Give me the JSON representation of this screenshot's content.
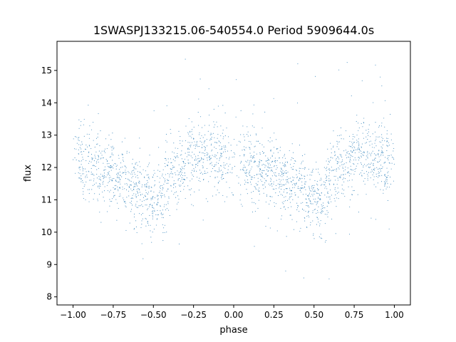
{
  "chart_data": {
    "type": "scatter",
    "title": "1SWASPJ133215.06-540554.0 Period 5909644.0s",
    "xlabel": "phase",
    "ylabel": "flux",
    "xlim": [
      -1.1,
      1.1
    ],
    "ylim": [
      7.75,
      15.9
    ],
    "xticks": [
      -1.0,
      -0.75,
      -0.5,
      -0.25,
      0.0,
      0.25,
      0.5,
      0.75,
      1.0
    ],
    "xtick_labels": [
      "−1.00",
      "−0.75",
      "−0.50",
      "−0.25",
      "0.00",
      "0.25",
      "0.50",
      "0.75",
      "1.00"
    ],
    "yticks": [
      8,
      9,
      10,
      11,
      12,
      13,
      14,
      15
    ],
    "ytick_labels": [
      "8",
      "9",
      "10",
      "11",
      "12",
      "13",
      "14",
      "15"
    ],
    "grid": false,
    "legend": "none",
    "marker_color": "#1f77b4",
    "x_range": [
      -1.0,
      1.0
    ],
    "y_range": [
      8.0,
      15.6
    ],
    "series": [
      {
        "x": [
          -1.0,
          -0.975,
          -0.95,
          -0.925,
          -0.9,
          -0.875,
          -0.85,
          -0.825,
          -0.8,
          -0.775,
          -0.75,
          -0.725,
          -0.7,
          -0.675,
          -0.65,
          -0.625,
          -0.6,
          -0.575,
          -0.55,
          -0.525,
          -0.5,
          -0.475,
          -0.45,
          -0.425,
          -0.4,
          -0.375,
          -0.35,
          -0.325,
          -0.3,
          -0.275,
          -0.25,
          -0.225,
          -0.2,
          -0.175,
          -0.15,
          -0.125,
          -0.1,
          -0.075,
          -0.05,
          -0.025,
          0.0
        ],
        "y": [
          12.2,
          12.3,
          12.2,
          12.1,
          12.2,
          12.1,
          12.0,
          11.9,
          11.8,
          11.9,
          11.8,
          11.7,
          11.6,
          11.6,
          11.5,
          11.4,
          11.4,
          11.3,
          11.2,
          11.1,
          11.0,
          11.1,
          11.1,
          11.3,
          11.6,
          11.8,
          12.0,
          12.0,
          12.1,
          12.2,
          12.3,
          12.4,
          12.4,
          12.3,
          12.5,
          12.4,
          12.3,
          12.2,
          12.2,
          12.3,
          12.2
        ]
      }
    ]
  }
}
